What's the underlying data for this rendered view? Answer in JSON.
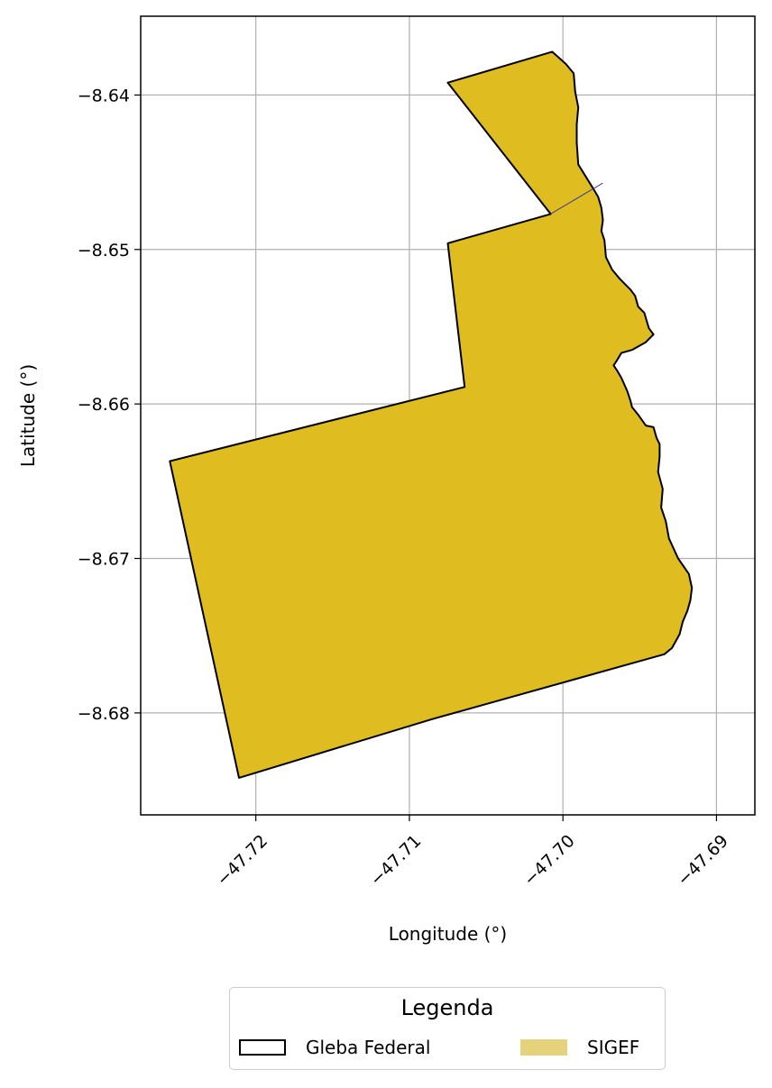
{
  "chart_data": {
    "type": "map",
    "xlabel": "Longitude (°)",
    "ylabel": "Latitude (°)",
    "xlim": [
      -47.7275,
      -47.6875
    ],
    "ylim": [
      -8.6866,
      -8.6349
    ],
    "x_ticks": [
      -47.72,
      -47.71,
      -47.7,
      -47.69
    ],
    "x_tick_labels": [
      "−47.72",
      "−47.71",
      "−47.70",
      "−47.69"
    ],
    "y_ticks": [
      -8.64,
      -8.65,
      -8.66,
      -8.67,
      -8.68
    ],
    "y_tick_labels": [
      "−8.64",
      "−8.65",
      "−8.66",
      "−8.67",
      "−8.68"
    ],
    "grid": true,
    "legend": {
      "title": "Legenda",
      "placement": "bottom-center",
      "entries": [
        {
          "label": "Gleba Federal",
          "style": "outline",
          "color": "#000000"
        },
        {
          "label": "SIGEF",
          "style": "fill",
          "color": "#e6d27a"
        }
      ]
    },
    "colors": {
      "fill": "#dfbd20",
      "outline": "#000000",
      "inner_line": "#3a3a9a",
      "grid": "#b0b0b0"
    },
    "polygon": [
      [
        -47.7075,
        -8.6392
      ],
      [
        -47.7007,
        -8.6372
      ],
      [
        -47.6998,
        -8.638
      ],
      [
        -47.6993,
        -8.6386
      ],
      [
        -47.6992,
        -8.6398
      ],
      [
        -47.699,
        -8.6408
      ],
      [
        -47.6991,
        -8.6419
      ],
      [
        -47.6991,
        -8.6431
      ],
      [
        -47.699,
        -8.6445
      ],
      [
        -47.6985,
        -8.6453
      ],
      [
        -47.698,
        -8.6461
      ],
      [
        -47.6977,
        -8.6466
      ],
      [
        -47.6975,
        -8.6473
      ],
      [
        -47.6974,
        -8.6481
      ],
      [
        -47.6975,
        -8.6488
      ],
      [
        -47.6973,
        -8.6494
      ],
      [
        -47.6972,
        -8.6505
      ],
      [
        -47.6968,
        -8.6513
      ],
      [
        -47.6963,
        -8.6519
      ],
      [
        -47.6959,
        -8.6523
      ],
      [
        -47.6956,
        -8.6526
      ],
      [
        -47.6953,
        -8.653
      ],
      [
        -47.6951,
        -8.6537
      ],
      [
        -47.6947,
        -8.6541
      ],
      [
        -47.6944,
        -8.6551
      ],
      [
        -47.6941,
        -8.6555
      ],
      [
        -47.6946,
        -8.656
      ],
      [
        -47.6955,
        -8.6565
      ],
      [
        -47.6962,
        -8.6567
      ],
      [
        -47.6965,
        -8.6572
      ],
      [
        -47.6967,
        -8.6575
      ],
      [
        -47.6965,
        -8.6578
      ],
      [
        -47.6962,
        -8.6583
      ],
      [
        -47.6958,
        -8.6592
      ],
      [
        -47.6956,
        -8.6598
      ],
      [
        -47.6955,
        -8.6602
      ],
      [
        -47.6951,
        -8.6607
      ],
      [
        -47.6946,
        -8.6614
      ],
      [
        -47.6941,
        -8.6615
      ],
      [
        -47.6939,
        -8.6622
      ],
      [
        -47.6937,
        -8.6626
      ],
      [
        -47.6937,
        -8.6634
      ],
      [
        -47.6938,
        -8.6644
      ],
      [
        -47.6935,
        -8.6655
      ],
      [
        -47.6936,
        -8.6667
      ],
      [
        -47.6933,
        -8.6676
      ],
      [
        -47.6931,
        -8.6687
      ],
      [
        -47.6925,
        -8.67
      ],
      [
        -47.6918,
        -8.671
      ],
      [
        -47.6916,
        -8.6719
      ],
      [
        -47.6917,
        -8.6727
      ],
      [
        -47.6919,
        -8.6734
      ],
      [
        -47.6922,
        -8.6741
      ],
      [
        -47.6924,
        -8.6749
      ],
      [
        -47.6929,
        -8.6758
      ],
      [
        -47.6934,
        -8.6762
      ],
      [
        -47.7085,
        -8.6804
      ],
      [
        -47.7211,
        -8.6842
      ],
      [
        -47.7256,
        -8.6637
      ],
      [
        -47.7064,
        -8.6589
      ],
      [
        -47.7075,
        -8.6496
      ],
      [
        -47.7008,
        -8.6477
      ]
    ],
    "inner_line": [
      [
        -47.7008,
        -8.6477
      ],
      [
        -47.6974,
        -8.6457
      ]
    ]
  }
}
